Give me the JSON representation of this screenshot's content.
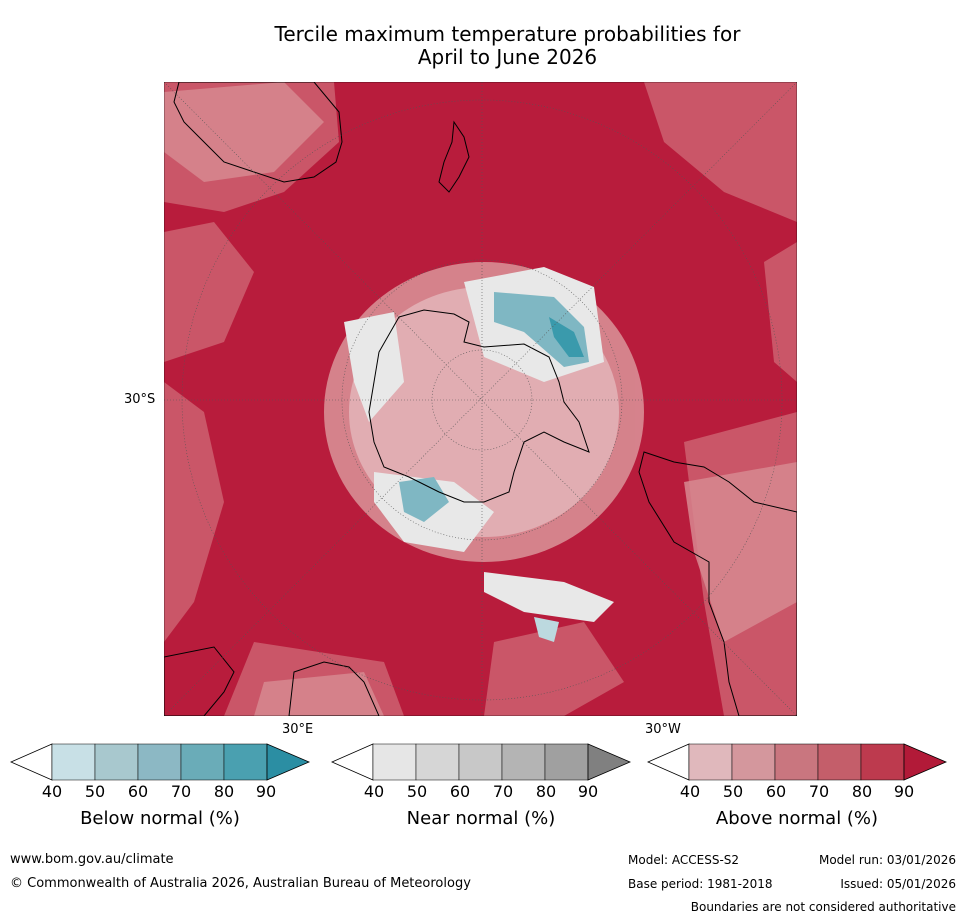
{
  "title": {
    "line1": "Tercile maximum temperature probabilities for",
    "line2": "April to June 2026"
  },
  "map": {
    "lat_label": "30°S",
    "lon_label_e": "30°E",
    "lon_label_w": "30°W",
    "palette": {
      "ocean_above_90": "#b81c3c",
      "above_80": "#c2364f",
      "above_70": "#cc5d6d",
      "above_60": "#d78890",
      "above_50": "#e4b5b9",
      "near_normal": "#e8e8e8",
      "below_50": "#bcd9df",
      "below_70": "#7fb7c3",
      "below_90": "#3a9aac"
    }
  },
  "colorbars": [
    {
      "label": "Below normal (%)",
      "ticks": [
        "40",
        "50",
        "60",
        "70",
        "80",
        "90"
      ],
      "colors": [
        "#c8e0e6",
        "#a8c8ce",
        "#8cb8c4",
        "#6aacb8",
        "#4aa0b0",
        "#2b8ea3"
      ]
    },
    {
      "label": "Near normal (%)",
      "ticks": [
        "40",
        "50",
        "60",
        "70",
        "80",
        "90"
      ],
      "colors": [
        "#e6e6e6",
        "#d6d6d6",
        "#c8c8c8",
        "#b4b4b4",
        "#a0a0a0",
        "#808080"
      ]
    },
    {
      "label": "Above normal (%)",
      "ticks": [
        "40",
        "50",
        "60",
        "70",
        "80",
        "90"
      ],
      "colors": [
        "#e0b8bc",
        "#d4979d",
        "#c9767f",
        "#c45e6a",
        "#bd3a4e",
        "#b21a38"
      ]
    }
  ],
  "footer": {
    "url": "www.bom.gov.au/climate",
    "copyright": "© Commonwealth of Australia 2026, Australian Bureau of Meteorology",
    "model": "Model: ACCESS-S2",
    "model_run": "Model run: 03/01/2026",
    "base_period": "Base period: 1981-2018",
    "issued": "Issued: 05/01/2026",
    "disclaimer": "Boundaries are not considered authoritative"
  }
}
